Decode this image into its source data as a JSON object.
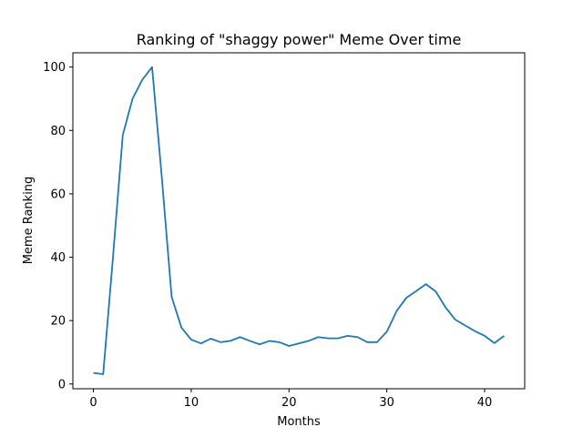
{
  "chart_data": {
    "type": "line",
    "title": "Ranking of \"shaggy power\" Meme Over time",
    "xlabel": "Months",
    "ylabel": "Meme Ranking",
    "xlim": [
      -2.1,
      44.1
    ],
    "ylim": [
      -1.5,
      104.5
    ],
    "xticks": [
      0,
      10,
      20,
      30,
      40
    ],
    "yticks": [
      0,
      20,
      40,
      60,
      80,
      100
    ],
    "grid": false,
    "line_color": "#1f77b4",
    "series": [
      {
        "x": [
          0,
          1,
          2,
          3,
          4,
          5,
          6,
          7,
          8,
          9,
          10,
          11,
          12,
          13,
          14,
          15,
          16,
          17,
          18,
          19,
          20,
          21,
          22,
          23,
          24,
          25,
          26,
          27,
          28,
          29,
          30,
          31,
          32,
          33,
          34,
          35,
          36,
          37,
          38,
          39,
          40,
          41,
          42
        ],
        "values": [
          3.5,
          3.1,
          40,
          78.5,
          90,
          96,
          100,
          65,
          27.5,
          17.8,
          14,
          12.8,
          14.3,
          13.2,
          13.6,
          14.8,
          13.6,
          12.5,
          13.6,
          13.2,
          12,
          12.8,
          13.6,
          14.8,
          14.4,
          14.4,
          15.2,
          14.8,
          13.2,
          13.2,
          16.5,
          23,
          27.2,
          29.3,
          31.5,
          29.2,
          24.2,
          20.3,
          18.5,
          16.7,
          15.2,
          12.9,
          15.2
        ]
      }
    ]
  }
}
